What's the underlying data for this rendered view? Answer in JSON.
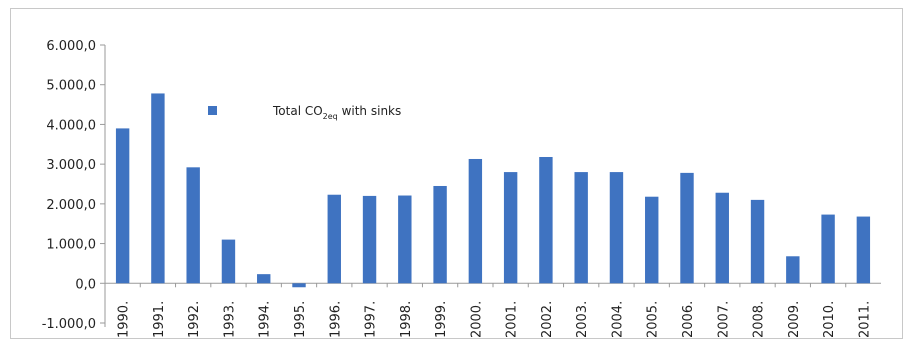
{
  "chart_data": {
    "type": "bar",
    "categories": [
      "1990.",
      "1991.",
      "1992.",
      "1993.",
      "1994.",
      "1995.",
      "1996.",
      "1997.",
      "1998.",
      "1999.",
      "2000.",
      "2001.",
      "2002.",
      "2003.",
      "2004.",
      "2005.",
      "2006.",
      "2007.",
      "2008.",
      "2009.",
      "2010.",
      "2011."
    ],
    "series": [
      {
        "name": "Total CO2eq with sinks",
        "values": [
          3900,
          4780,
          2920,
          1100,
          230,
          -100,
          2230,
          2200,
          2210,
          2450,
          3130,
          2800,
          3180,
          2800,
          2800,
          2180,
          2780,
          2280,
          2100,
          680,
          1730,
          1680
        ],
        "color": "#3f73c1"
      }
    ],
    "legend": {
      "main": "Total CO",
      "sub": "2eq",
      "rest": " with sinks",
      "placement": "top-left-inside"
    },
    "y_ticks": [
      "-1.000,0",
      "0,0",
      "1.000,0",
      "2.000,0",
      "3.000,0",
      "4.000,0",
      "5.000,0",
      "6.000,0"
    ],
    "ylim": [
      -1000,
      6000
    ],
    "grid": false,
    "title": "",
    "xlabel": "",
    "ylabel": ""
  }
}
